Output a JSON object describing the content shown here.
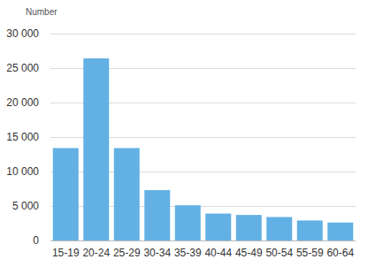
{
  "chart_data": {
    "type": "bar",
    "y_label": "Number",
    "categories": [
      "15-19",
      "20-24",
      "25-29",
      "30-34",
      "35-39",
      "40-44",
      "45-49",
      "50-54",
      "55-59",
      "60-64"
    ],
    "values": [
      13400,
      26400,
      13400,
      7300,
      5100,
      3900,
      3700,
      3400,
      2900,
      2600
    ],
    "color": "#62b0e4",
    "ylim": [
      0,
      30000
    ],
    "yticks": [
      0,
      {
        "value": 5000,
        "label": "5 000"
      },
      {
        "value": 10000,
        "label": "10 000"
      },
      {
        "value": 15000,
        "label": "15 000"
      },
      {
        "value": 20000,
        "label": "20 000"
      },
      {
        "value": 25000,
        "label": "25 000"
      },
      {
        "value": 30000,
        "label": "30 000"
      }
    ],
    "grid": true
  }
}
